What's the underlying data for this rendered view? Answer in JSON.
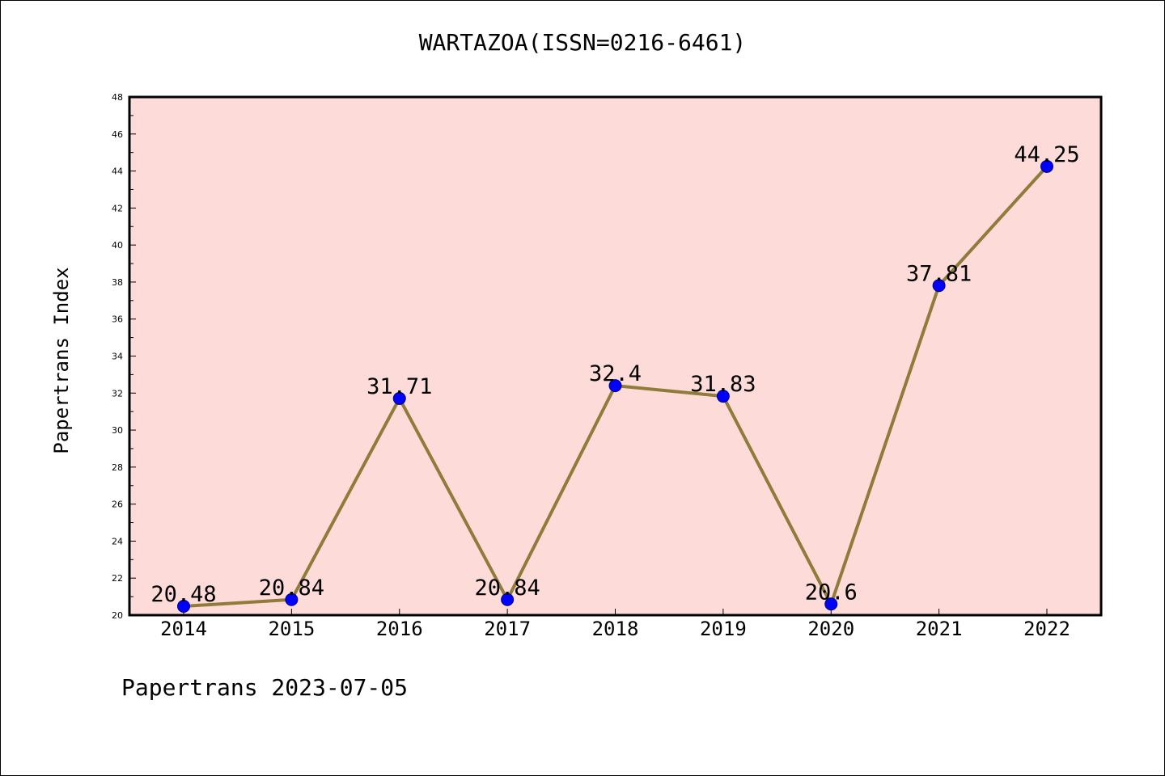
{
  "title": "WARTAZOA(ISSN=0216-6461)",
  "footer": "Papertrans 2023-07-05",
  "colors": {
    "plot_bg": "#fddbd9",
    "line": "#8f7b3a",
    "marker": "#0000ff",
    "axis": "#000000"
  },
  "chart_data": {
    "type": "line",
    "title": "WARTAZOA(ISSN=0216-6461)",
    "xlabel": "",
    "ylabel": "Papertrans Index",
    "categories": [
      "2014",
      "2015",
      "2016",
      "2017",
      "2018",
      "2019",
      "2020",
      "2021",
      "2022"
    ],
    "values": [
      20.48,
      20.84,
      31.71,
      20.84,
      32.4,
      31.83,
      20.6,
      37.81,
      44.25
    ],
    "data_labels": [
      "20.48",
      "20.84",
      "31.71",
      "20.84",
      "32.4",
      "31.83",
      "20.6",
      "37.81",
      "44.25"
    ],
    "ylim": [
      20,
      48
    ],
    "yticks": [
      "20",
      "22",
      "24",
      "26",
      "28",
      "30",
      "32",
      "34",
      "36",
      "38",
      "40",
      "42",
      "44",
      "46",
      "48"
    ],
    "grid": false,
    "legend": "none"
  }
}
